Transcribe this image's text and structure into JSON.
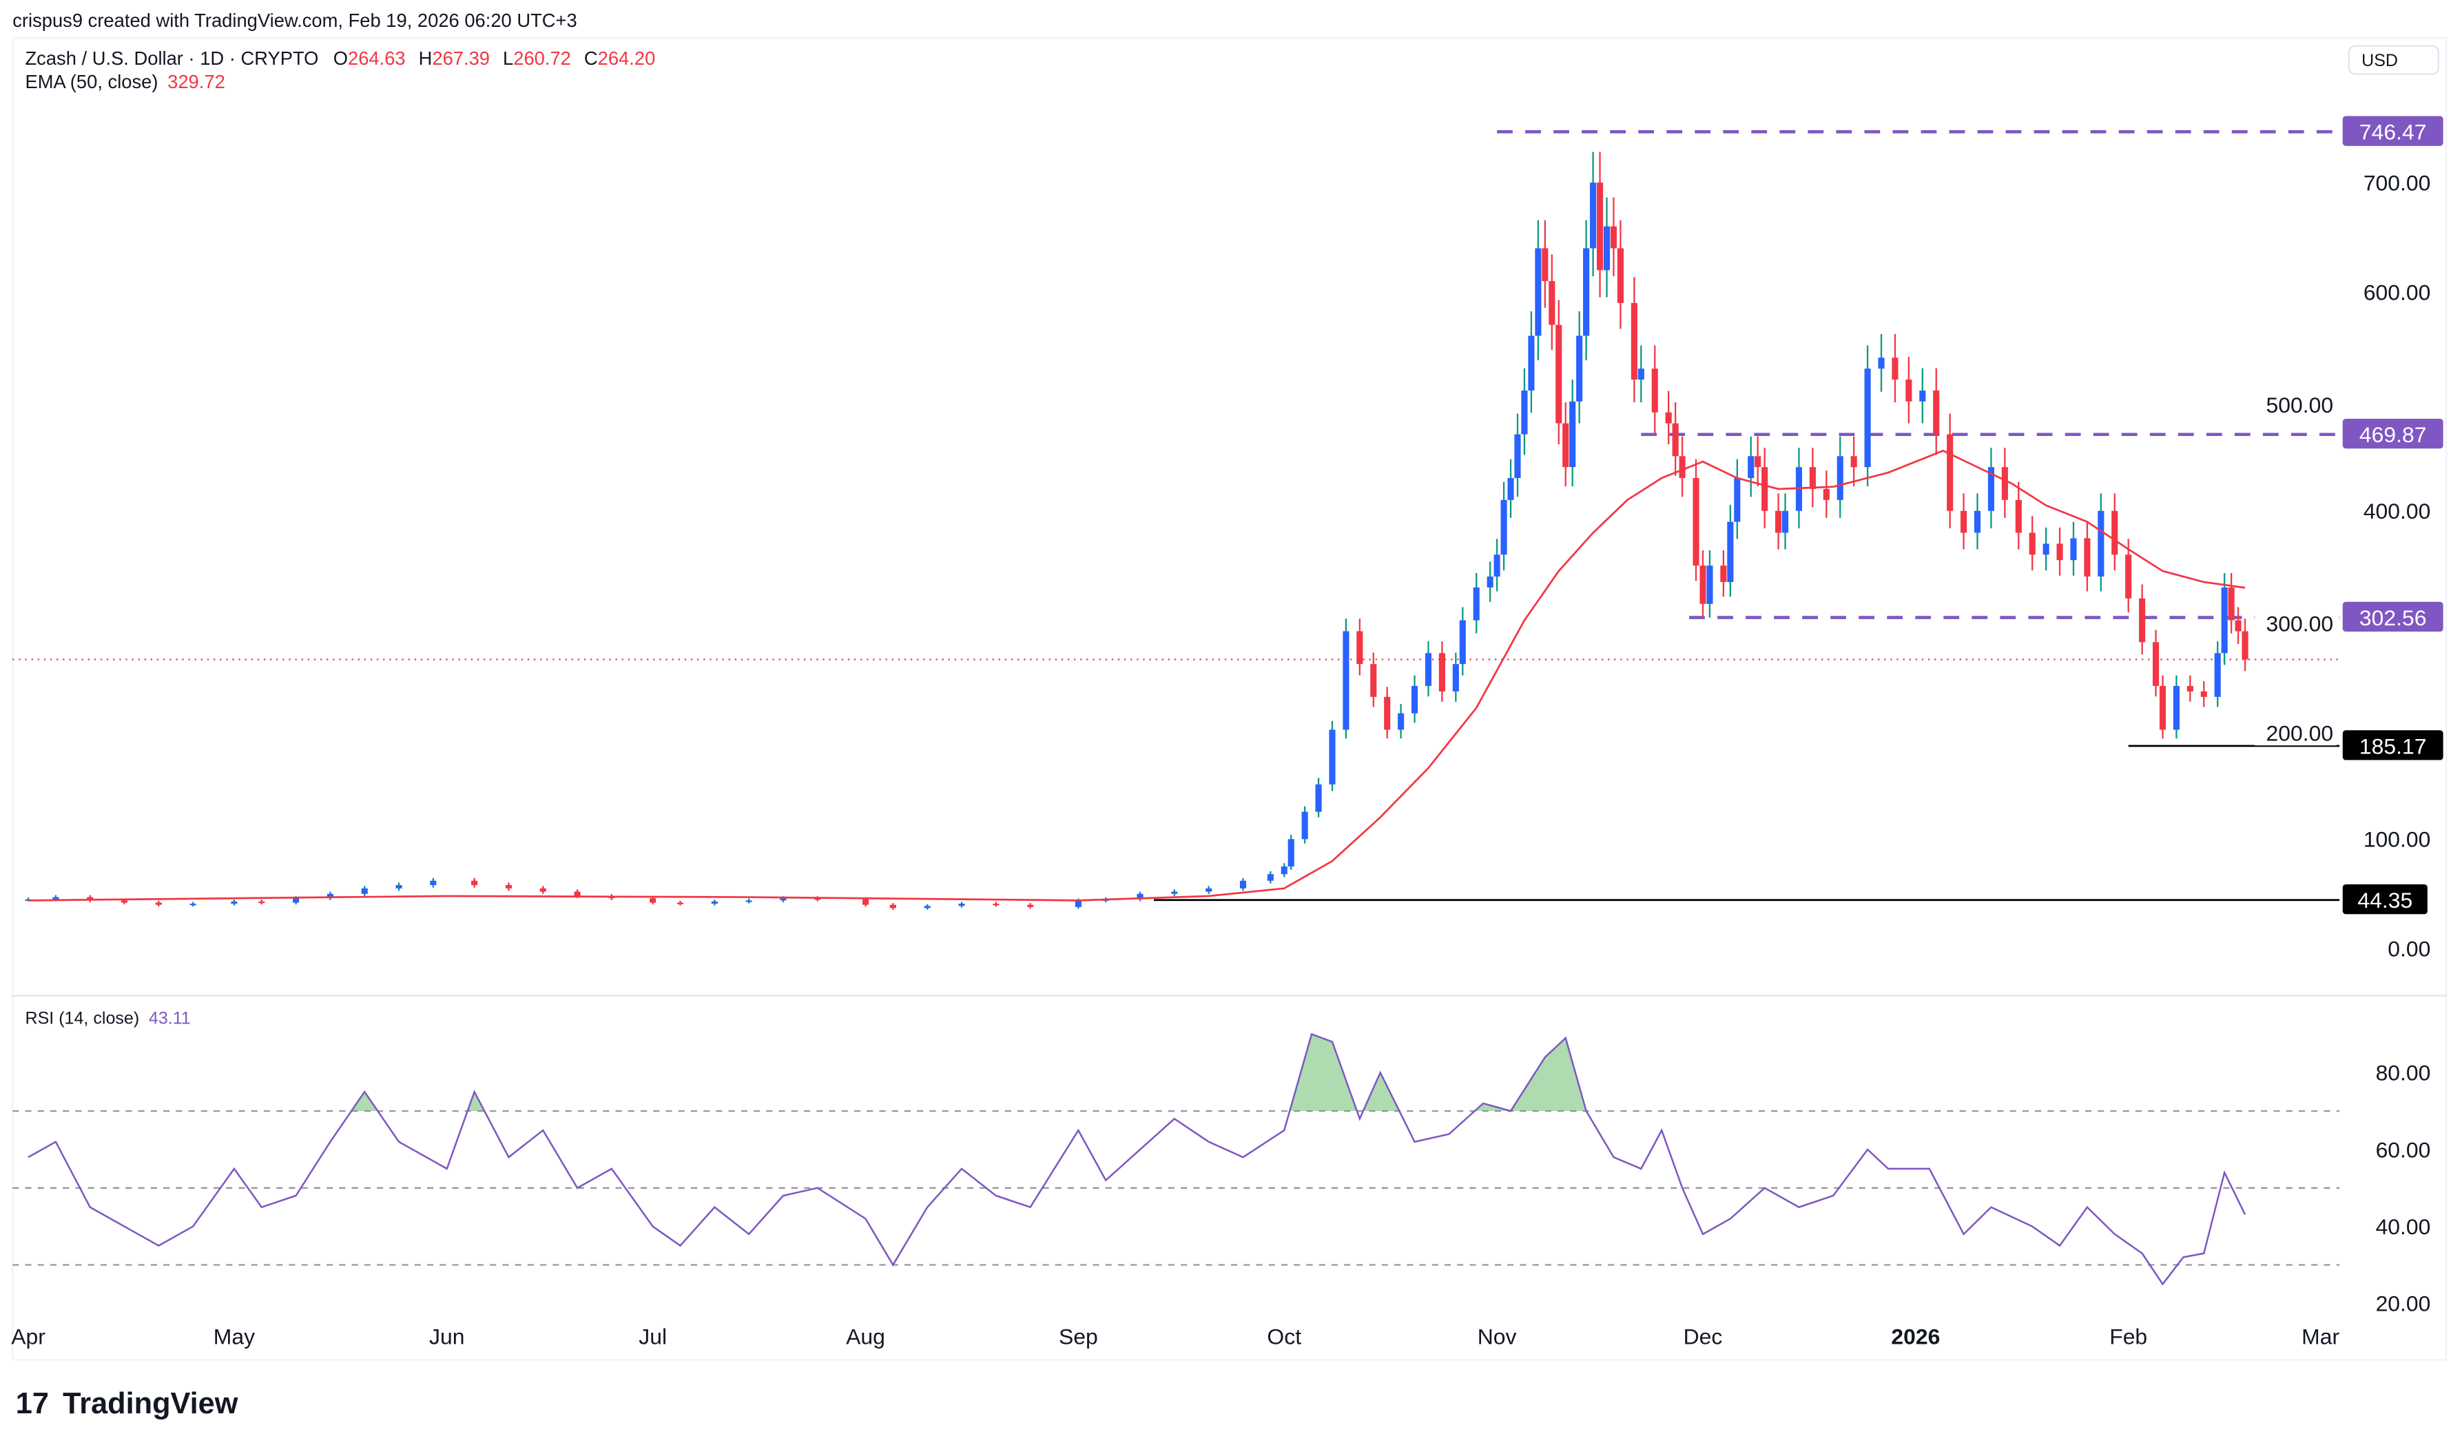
{
  "credit": "crispus9 created with TradingView.com, Feb 19, 2026 06:20 UTC+3",
  "legend": {
    "symbol": "Zcash / U.S. Dollar · 1D · CRYPTO",
    "o_label": "O",
    "o": "264.63",
    "h_label": "H",
    "h": "267.39",
    "l_label": "L",
    "l": "260.72",
    "c_label": "C",
    "c": "264.20",
    "ema_label": "EMA (50, close)",
    "ema": "329.72",
    "rsi_label": "RSI (14, close)",
    "rsi": "43.11"
  },
  "currency_button": "USD",
  "logo_text": "TradingView",
  "colors": {
    "up_body": "#2962ff",
    "up_wick": "#089981",
    "down": "#f23645",
    "ema": "#f23645",
    "levels": "#7e57c2",
    "rsi": "#7e57c2",
    "support": "#000000"
  },
  "chart_data": {
    "type": "candlestick",
    "ylim": [
      -40,
      760
    ],
    "price_ticks": [
      "700.00",
      "600.00",
      "500.00",
      "400.00",
      "300.00",
      "200.00",
      "100.00",
      "0.00"
    ],
    "price_tick_values": [
      700,
      600,
      500,
      400,
      300,
      200,
      100,
      0
    ],
    "time_ticks": [
      {
        "label": "Apr",
        "date": "2025-04-01"
      },
      {
        "label": "May",
        "date": "2025-05-01"
      },
      {
        "label": "Jun",
        "date": "2025-06-01"
      },
      {
        "label": "Jul",
        "date": "2025-07-01"
      },
      {
        "label": "Aug",
        "date": "2025-08-01"
      },
      {
        "label": "Sep",
        "date": "2025-09-01"
      },
      {
        "label": "Oct",
        "date": "2025-10-01"
      },
      {
        "label": "Nov",
        "date": "2025-11-01"
      },
      {
        "label": "Dec",
        "date": "2025-12-01"
      },
      {
        "label": "2026",
        "date": "2026-01-01",
        "bold": true
      },
      {
        "label": "Feb",
        "date": "2026-02-01"
      },
      {
        "label": "Mar",
        "date": "2026-03-01"
      }
    ],
    "closes": [
      [
        "2025-04-01",
        45
      ],
      [
        "2025-04-05",
        47
      ],
      [
        "2025-04-10",
        44
      ],
      [
        "2025-04-15",
        42
      ],
      [
        "2025-04-20",
        40
      ],
      [
        "2025-04-25",
        41
      ],
      [
        "2025-05-01",
        43
      ],
      [
        "2025-05-05",
        42
      ],
      [
        "2025-05-10",
        46
      ],
      [
        "2025-05-15",
        50
      ],
      [
        "2025-05-20",
        55
      ],
      [
        "2025-05-25",
        58
      ],
      [
        "2025-05-30",
        62
      ],
      [
        "2025-06-05",
        58
      ],
      [
        "2025-06-10",
        55
      ],
      [
        "2025-06-15",
        52
      ],
      [
        "2025-06-20",
        48
      ],
      [
        "2025-06-25",
        46
      ],
      [
        "2025-07-01",
        42
      ],
      [
        "2025-07-05",
        41
      ],
      [
        "2025-07-10",
        43
      ],
      [
        "2025-07-15",
        44
      ],
      [
        "2025-07-20",
        46
      ],
      [
        "2025-07-25",
        45
      ],
      [
        "2025-08-01",
        40
      ],
      [
        "2025-08-05",
        37
      ],
      [
        "2025-08-10",
        39
      ],
      [
        "2025-08-15",
        41
      ],
      [
        "2025-08-20",
        40
      ],
      [
        "2025-08-25",
        38
      ],
      [
        "2025-09-01",
        44
      ],
      [
        "2025-09-05",
        45
      ],
      [
        "2025-09-10",
        50
      ],
      [
        "2025-09-15",
        52
      ],
      [
        "2025-09-20",
        55
      ],
      [
        "2025-09-25",
        62
      ],
      [
        "2025-09-29",
        68
      ],
      [
        "2025-10-01",
        75
      ],
      [
        "2025-10-02",
        100
      ],
      [
        "2025-10-04",
        125
      ],
      [
        "2025-10-06",
        150
      ],
      [
        "2025-10-08",
        200
      ],
      [
        "2025-10-10",
        290
      ],
      [
        "2025-10-12",
        260
      ],
      [
        "2025-10-14",
        230
      ],
      [
        "2025-10-16",
        200
      ],
      [
        "2025-10-18",
        215
      ],
      [
        "2025-10-20",
        240
      ],
      [
        "2025-10-22",
        270
      ],
      [
        "2025-10-24",
        235
      ],
      [
        "2025-10-26",
        260
      ],
      [
        "2025-10-27",
        300
      ],
      [
        "2025-10-29",
        330
      ],
      [
        "2025-10-31",
        340
      ],
      [
        "2025-11-01",
        360
      ],
      [
        "2025-11-02",
        410
      ],
      [
        "2025-11-03",
        430
      ],
      [
        "2025-11-04",
        470
      ],
      [
        "2025-11-05",
        510
      ],
      [
        "2025-11-06",
        560
      ],
      [
        "2025-11-07",
        640
      ],
      [
        "2025-11-08",
        610
      ],
      [
        "2025-11-09",
        570
      ],
      [
        "2025-11-10",
        480
      ],
      [
        "2025-11-11",
        440
      ],
      [
        "2025-11-12",
        500
      ],
      [
        "2025-11-13",
        560
      ],
      [
        "2025-11-14",
        640
      ],
      [
        "2025-11-15",
        700
      ],
      [
        "2025-11-16",
        620
      ],
      [
        "2025-11-17",
        660
      ],
      [
        "2025-11-18",
        640
      ],
      [
        "2025-11-19",
        590
      ],
      [
        "2025-11-21",
        520
      ],
      [
        "2025-11-22",
        530
      ],
      [
        "2025-11-24",
        490
      ],
      [
        "2025-11-26",
        480
      ],
      [
        "2025-11-27",
        450
      ],
      [
        "2025-11-28",
        430
      ],
      [
        "2025-11-30",
        350
      ],
      [
        "2025-12-01",
        315
      ],
      [
        "2025-12-02",
        350
      ],
      [
        "2025-12-04",
        335
      ],
      [
        "2025-12-05",
        390
      ],
      [
        "2025-12-06",
        430
      ],
      [
        "2025-12-08",
        450
      ],
      [
        "2025-12-09",
        440
      ],
      [
        "2025-12-10",
        400
      ],
      [
        "2025-12-12",
        380
      ],
      [
        "2025-12-13",
        400
      ],
      [
        "2025-12-15",
        440
      ],
      [
        "2025-12-17",
        420
      ],
      [
        "2025-12-19",
        410
      ],
      [
        "2025-12-21",
        450
      ],
      [
        "2025-12-23",
        440
      ],
      [
        "2025-12-25",
        530
      ],
      [
        "2025-12-27",
        540
      ],
      [
        "2025-12-29",
        520
      ],
      [
        "2025-12-31",
        500
      ],
      [
        "2026-01-02",
        510
      ],
      [
        "2026-01-04",
        470
      ],
      [
        "2026-01-06",
        400
      ],
      [
        "2026-01-08",
        380
      ],
      [
        "2026-01-10",
        400
      ],
      [
        "2026-01-12",
        440
      ],
      [
        "2026-01-14",
        410
      ],
      [
        "2026-01-16",
        380
      ],
      [
        "2026-01-18",
        360
      ],
      [
        "2026-01-20",
        370
      ],
      [
        "2026-01-22",
        355
      ],
      [
        "2026-01-24",
        375
      ],
      [
        "2026-01-26",
        340
      ],
      [
        "2026-01-28",
        400
      ],
      [
        "2026-01-30",
        360
      ],
      [
        "2026-02-01",
        320
      ],
      [
        "2026-02-03",
        280
      ],
      [
        "2026-02-05",
        240
      ],
      [
        "2026-02-06",
        200
      ],
      [
        "2026-02-08",
        240
      ],
      [
        "2026-02-10",
        235
      ],
      [
        "2026-02-12",
        230
      ],
      [
        "2026-02-14",
        270
      ],
      [
        "2026-02-15",
        330
      ],
      [
        "2026-02-16",
        300
      ],
      [
        "2026-02-17",
        290
      ],
      [
        "2026-02-18",
        264.2
      ]
    ],
    "ema50": [
      [
        "2025-04-01",
        44
      ],
      [
        "2025-06-01",
        48
      ],
      [
        "2025-07-15",
        47
      ],
      [
        "2025-09-01",
        44
      ],
      [
        "2025-09-20",
        48
      ],
      [
        "2025-10-01",
        55
      ],
      [
        "2025-10-08",
        80
      ],
      [
        "2025-10-15",
        120
      ],
      [
        "2025-10-22",
        165
      ],
      [
        "2025-10-29",
        220
      ],
      [
        "2025-11-05",
        300
      ],
      [
        "2025-11-10",
        345
      ],
      [
        "2025-11-15",
        380
      ],
      [
        "2025-11-20",
        410
      ],
      [
        "2025-11-25",
        430
      ],
      [
        "2025-12-01",
        445
      ],
      [
        "2025-12-06",
        430
      ],
      [
        "2025-12-12",
        420
      ],
      [
        "2025-12-20",
        422
      ],
      [
        "2025-12-28",
        435
      ],
      [
        "2026-01-05",
        455
      ],
      [
        "2026-01-10",
        440
      ],
      [
        "2026-01-15",
        425
      ],
      [
        "2026-01-20",
        405
      ],
      [
        "2026-01-26",
        390
      ],
      [
        "2026-02-01",
        365
      ],
      [
        "2026-02-06",
        345
      ],
      [
        "2026-02-12",
        335
      ],
      [
        "2026-02-18",
        329.72
      ]
    ],
    "levels": [
      {
        "value": 746.47,
        "label": "746.47",
        "style": "dashed",
        "from": "2025-11-01"
      },
      {
        "value": 469.87,
        "label": "469.87",
        "style": "dashed",
        "from": "2025-11-22"
      },
      {
        "value": 302.56,
        "label": "302.56",
        "style": "dashed",
        "from": "2025-11-29"
      },
      {
        "value": 185.17,
        "label": "185.17",
        "style": "solid",
        "from": "2026-02-01"
      },
      {
        "value": 44.35,
        "label": "44.35",
        "style": "solid",
        "from": "2025-09-12"
      }
    ],
    "last_price": 264.2,
    "rsi": {
      "ylim": [
        15,
        100
      ],
      "ticks": [
        "80.00",
        "60.00",
        "40.00",
        "20.00"
      ],
      "tick_values": [
        80,
        60,
        40,
        20
      ],
      "bands": [
        70,
        50,
        30
      ],
      "values": [
        [
          "2025-04-01",
          58
        ],
        [
          "2025-04-05",
          62
        ],
        [
          "2025-04-10",
          45
        ],
        [
          "2025-04-15",
          40
        ],
        [
          "2025-04-20",
          35
        ],
        [
          "2025-04-25",
          40
        ],
        [
          "2025-05-01",
          55
        ],
        [
          "2025-05-05",
          45
        ],
        [
          "2025-05-10",
          48
        ],
        [
          "2025-05-15",
          62
        ],
        [
          "2025-05-20",
          75
        ],
        [
          "2025-05-25",
          62
        ],
        [
          "2025-06-01",
          55
        ],
        [
          "2025-06-05",
          75
        ],
        [
          "2025-06-10",
          58
        ],
        [
          "2025-06-15",
          65
        ],
        [
          "2025-06-20",
          50
        ],
        [
          "2025-06-25",
          55
        ],
        [
          "2025-07-01",
          40
        ],
        [
          "2025-07-05",
          35
        ],
        [
          "2025-07-10",
          45
        ],
        [
          "2025-07-15",
          38
        ],
        [
          "2025-07-20",
          48
        ],
        [
          "2025-07-25",
          50
        ],
        [
          "2025-08-01",
          42
        ],
        [
          "2025-08-05",
          30
        ],
        [
          "2025-08-10",
          45
        ],
        [
          "2025-08-15",
          55
        ],
        [
          "2025-08-20",
          48
        ],
        [
          "2025-08-25",
          45
        ],
        [
          "2025-09-01",
          65
        ],
        [
          "2025-09-05",
          52
        ],
        [
          "2025-09-10",
          60
        ],
        [
          "2025-09-15",
          68
        ],
        [
          "2025-09-20",
          62
        ],
        [
          "2025-09-25",
          58
        ],
        [
          "2025-10-01",
          65
        ],
        [
          "2025-10-05",
          90
        ],
        [
          "2025-10-08",
          88
        ],
        [
          "2025-10-12",
          68
        ],
        [
          "2025-10-15",
          80
        ],
        [
          "2025-10-20",
          62
        ],
        [
          "2025-10-25",
          64
        ],
        [
          "2025-10-30",
          72
        ],
        [
          "2025-11-03",
          70
        ],
        [
          "2025-11-08",
          84
        ],
        [
          "2025-11-11",
          89
        ],
        [
          "2025-11-14",
          70
        ],
        [
          "2025-11-18",
          58
        ],
        [
          "2025-11-22",
          55
        ],
        [
          "2025-11-25",
          65
        ],
        [
          "2025-11-28",
          50
        ],
        [
          "2025-12-01",
          38
        ],
        [
          "2025-12-05",
          42
        ],
        [
          "2025-12-10",
          50
        ],
        [
          "2025-12-15",
          45
        ],
        [
          "2025-12-20",
          48
        ],
        [
          "2025-12-25",
          60
        ],
        [
          "2025-12-28",
          55
        ],
        [
          "2026-01-03",
          55
        ],
        [
          "2026-01-08",
          38
        ],
        [
          "2026-01-12",
          45
        ],
        [
          "2026-01-18",
          40
        ],
        [
          "2026-01-22",
          35
        ],
        [
          "2026-01-26",
          45
        ],
        [
          "2026-01-30",
          38
        ],
        [
          "2026-02-03",
          33
        ],
        [
          "2026-02-06",
          25
        ],
        [
          "2026-02-09",
          32
        ],
        [
          "2026-02-12",
          33
        ],
        [
          "2026-02-15",
          54
        ],
        [
          "2026-02-18",
          43.11
        ]
      ]
    }
  }
}
